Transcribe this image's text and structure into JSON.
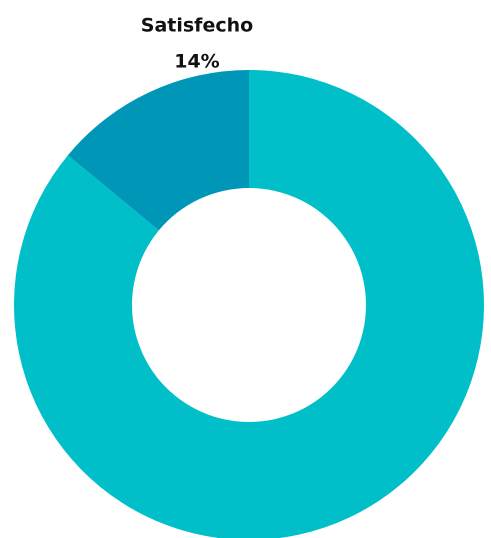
{
  "chart_data": {
    "type": "donut",
    "categories": [
      null,
      "Satisfecho"
    ],
    "values": [
      86,
      14
    ],
    "value_labels": [
      null,
      "14%"
    ],
    "colors": [
      "#00bfc9",
      "#0096b7"
    ]
  }
}
